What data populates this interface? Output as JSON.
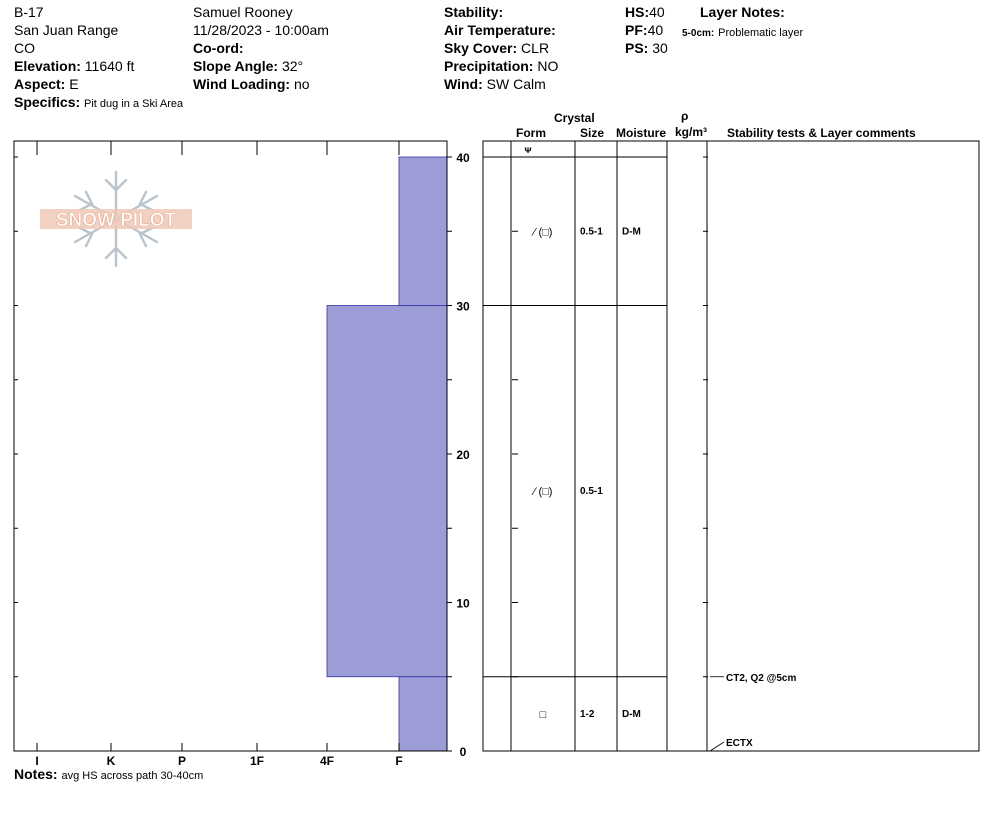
{
  "header": {
    "pit_id": "B-17",
    "range": "San Juan Range",
    "state": "CO",
    "elevation_label": "Elevation:",
    "elevation_value": "11640 ft",
    "aspect_label": "Aspect:",
    "aspect_value": "E",
    "specifics_label": "Specifics:",
    "specifics_value": "Pit dug in a Ski Area",
    "observer": "Samuel  Rooney",
    "datetime": "11/28/2023 - 10:00am",
    "coord_label": "Co-ord:",
    "slope_label": "Slope Angle:",
    "slope_value": "32°",
    "wind_loading_label": "Wind Loading:",
    "wind_loading_value": "no",
    "stability_label": "Stability:",
    "air_temp_label": "Air Temperature:",
    "sky_label": "Sky Cover:",
    "sky_value": "CLR",
    "precip_label": "Precipitation:",
    "precip_value": "NO",
    "wind_label": "Wind:",
    "wind_value": "SW Calm",
    "hs_label": "HS:",
    "hs_value": "40",
    "pf_label": "PF:",
    "pf_value": "40",
    "ps_label": "PS:",
    "ps_value": "30",
    "layer_notes_label": "Layer Notes:",
    "layer_note_depth": "5-0cm:",
    "layer_note_text": "Problematic layer"
  },
  "logo": {
    "text": "SNOW PILOT"
  },
  "columns": {
    "crystal": "Crystal",
    "form": "Form",
    "size": "Size",
    "moisture": "Moisture",
    "rho": "ρ",
    "density_unit": "kg/m³",
    "stability": "Stability tests & Layer comments"
  },
  "notes": {
    "label": "Notes:",
    "value": "avg HS across path 30-40cm"
  },
  "colors": {
    "bar_fill": "#9c9cd6",
    "bar_stroke": "#3333aa"
  },
  "chart_data": {
    "type": "bar",
    "orientation": "horizontal",
    "hardness_scale": [
      "I",
      "K",
      "P",
      "1F",
      "4F",
      "F"
    ],
    "ylim": [
      0,
      40
    ],
    "y_ticks": [
      0,
      10,
      20,
      30,
      40
    ],
    "layers": [
      {
        "top": 40,
        "bottom": 30,
        "hardness": "F",
        "form": "⁄ (□)",
        "size": "0.5-1",
        "moisture": "D-M"
      },
      {
        "top": 30,
        "bottom": 5,
        "hardness": "4F",
        "form": "⁄ (□)",
        "size": "0.5-1",
        "moisture": ""
      },
      {
        "top": 5,
        "bottom": 0,
        "hardness": "F",
        "form": "□",
        "size": "1-2",
        "moisture": "D-M"
      }
    ],
    "surface_form": "ᴪ",
    "tests": [
      {
        "depth": 5,
        "label": "CT2, Q2 @5cm"
      },
      {
        "depth": 0,
        "label": "ECTX"
      }
    ]
  }
}
